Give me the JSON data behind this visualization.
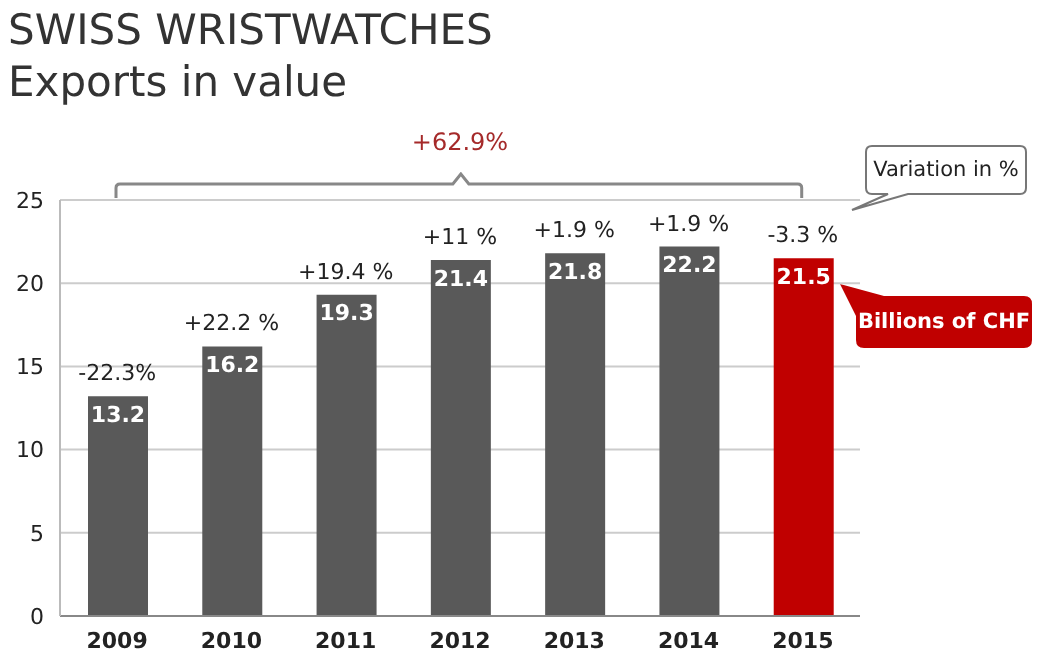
{
  "chart_data": {
    "type": "bar",
    "title": "SWISS WRISTWATCHES",
    "subtitle": "Exports in value",
    "categories": [
      "2009",
      "2010",
      "2011",
      "2012",
      "2013",
      "2014",
      "2015"
    ],
    "values": [
      13.2,
      16.2,
      19.3,
      21.4,
      21.8,
      22.2,
      21.5
    ],
    "colors": [
      "#595959",
      "#595959",
      "#595959",
      "#595959",
      "#595959",
      "#595959",
      "#c00000"
    ],
    "ylim": [
      0,
      25
    ],
    "yticks": [
      0,
      5,
      10,
      15,
      20,
      25
    ],
    "grid": "y",
    "data_labels": true,
    "annotations": [
      "+62.9%",
      "Variation in %",
      "Billions of CHF",
      {
        "text": "-22.3%",
        "x": "2009",
        "y": 13.2
      },
      {
        "text": "+22.2 %",
        "x": "2010",
        "y": 16.2
      },
      {
        "text": "+19.4 %",
        "x": "2011",
        "y": 19.3
      },
      {
        "text": "+11 %",
        "x": "2012",
        "y": 21.4
      },
      {
        "text": "+1.9 %",
        "x": "2013",
        "y": 21.8
      },
      {
        "text": "+1.9 %",
        "x": "2014",
        "y": 22.2
      },
      {
        "text": "-3.3 %",
        "x": "2015",
        "y": 21.5
      }
    ]
  }
}
